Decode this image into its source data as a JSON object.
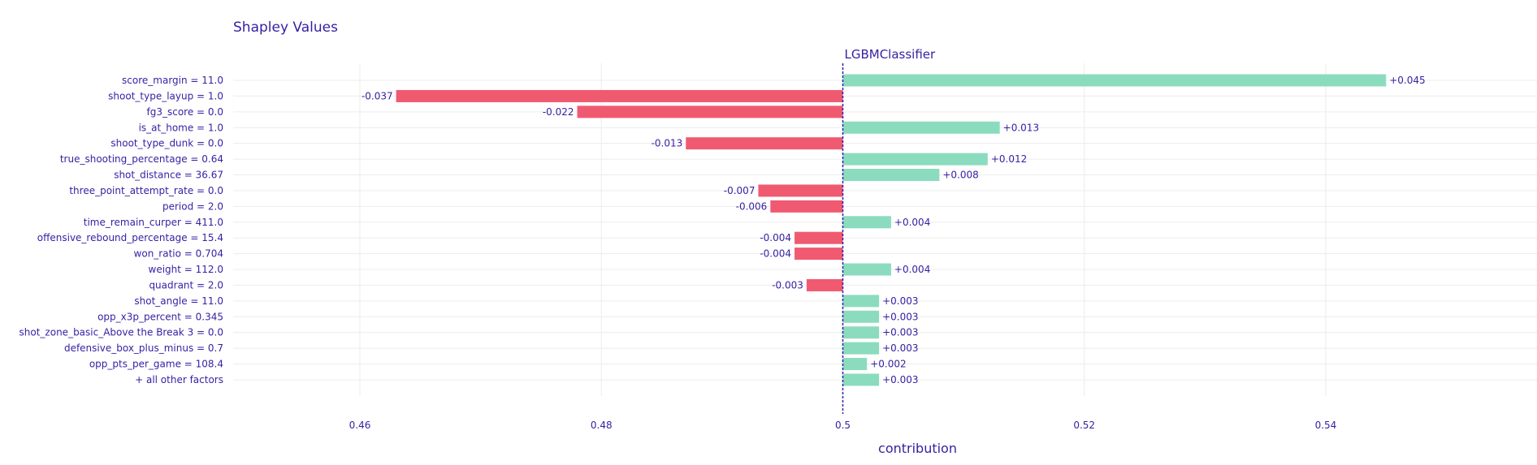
{
  "chart_data": {
    "type": "bar",
    "orientation": "horizontal",
    "title": "Shapley Values",
    "subtitle": "LGBMClassifier",
    "xlabel": "contribution",
    "baseline": 0.5,
    "xlim": [
      0.4495,
      0.5575
    ],
    "xticks": [
      0.46,
      0.48,
      0.5,
      0.52,
      0.54
    ],
    "xtick_labels": [
      "0.46",
      "0.48",
      "0.5",
      "0.52",
      "0.54"
    ],
    "grid": true,
    "colors": {
      "positive": "#8bdcbe",
      "negative": "#f05a71",
      "baseline": "#371ea3"
    },
    "bars": [
      {
        "label": "score_margin = 11.0",
        "value": 0.045,
        "text": "+0.045"
      },
      {
        "label": "shoot_type_layup = 1.0",
        "value": -0.037,
        "text": "-0.037"
      },
      {
        "label": "fg3_score = 0.0",
        "value": -0.022,
        "text": "-0.022"
      },
      {
        "label": "is_at_home = 1.0",
        "value": 0.013,
        "text": "+0.013"
      },
      {
        "label": "shoot_type_dunk = 0.0",
        "value": -0.013,
        "text": "-0.013"
      },
      {
        "label": "true_shooting_percentage = 0.64",
        "value": 0.012,
        "text": "+0.012"
      },
      {
        "label": "shot_distance = 36.67",
        "value": 0.008,
        "text": "+0.008"
      },
      {
        "label": "three_point_attempt_rate = 0.0",
        "value": -0.007,
        "text": "-0.007"
      },
      {
        "label": "period = 2.0",
        "value": -0.006,
        "text": "-0.006"
      },
      {
        "label": "time_remain_curper = 411.0",
        "value": 0.004,
        "text": "+0.004"
      },
      {
        "label": "offensive_rebound_percentage = 15.4",
        "value": -0.004,
        "text": "-0.004"
      },
      {
        "label": "won_ratio = 0.704",
        "value": -0.004,
        "text": "-0.004"
      },
      {
        "label": "weight = 112.0",
        "value": 0.004,
        "text": "+0.004"
      },
      {
        "label": "quadrant = 2.0",
        "value": -0.003,
        "text": "-0.003"
      },
      {
        "label": "shot_angle = 11.0",
        "value": 0.003,
        "text": "+0.003"
      },
      {
        "label": "opp_x3p_percent = 0.345",
        "value": 0.003,
        "text": "+0.003"
      },
      {
        "label": "shot_zone_basic_Above the Break 3 = 0.0",
        "value": 0.003,
        "text": "+0.003"
      },
      {
        "label": "defensive_box_plus_minus = 0.7",
        "value": 0.003,
        "text": "+0.003"
      },
      {
        "label": "opp_pts_per_game = 108.4",
        "value": 0.002,
        "text": "+0.002"
      },
      {
        "label": "+ all other factors",
        "value": 0.003,
        "text": "+0.003"
      }
    ]
  }
}
